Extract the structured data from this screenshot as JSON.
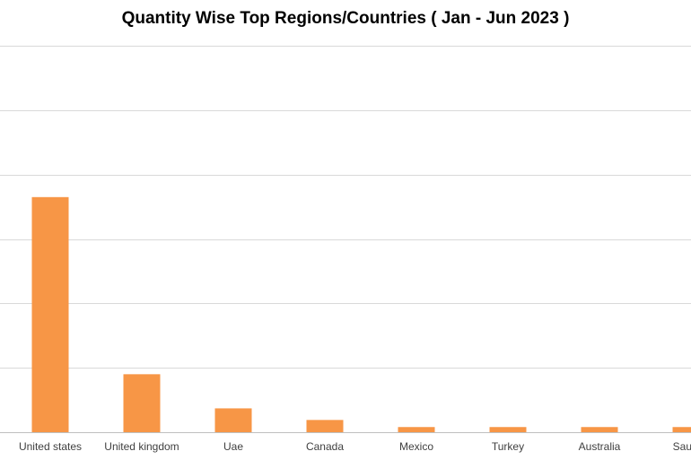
{
  "chart_data": {
    "type": "bar",
    "title": "Quantity Wise Top Regions/Countries ( Jan - Jun 2023 )",
    "xlabel": "",
    "ylabel": "",
    "categories": [
      "United states",
      "United kingdom",
      "Uae",
      "Canada",
      "Mexico",
      "Turkey",
      "Australia",
      "Saudi a"
    ],
    "series": [
      {
        "values": [
          36.5,
          9.0,
          3.7,
          1.9,
          0.8,
          0.8,
          0.8,
          0.8
        ]
      }
    ],
    "ylim": [
      0,
      60
    ],
    "grid": true,
    "legend": "none",
    "colors": {
      "bar": "#F79646",
      "grid": "#D9D9D9",
      "axis": "#BFBFBF",
      "text": "#404040"
    }
  }
}
